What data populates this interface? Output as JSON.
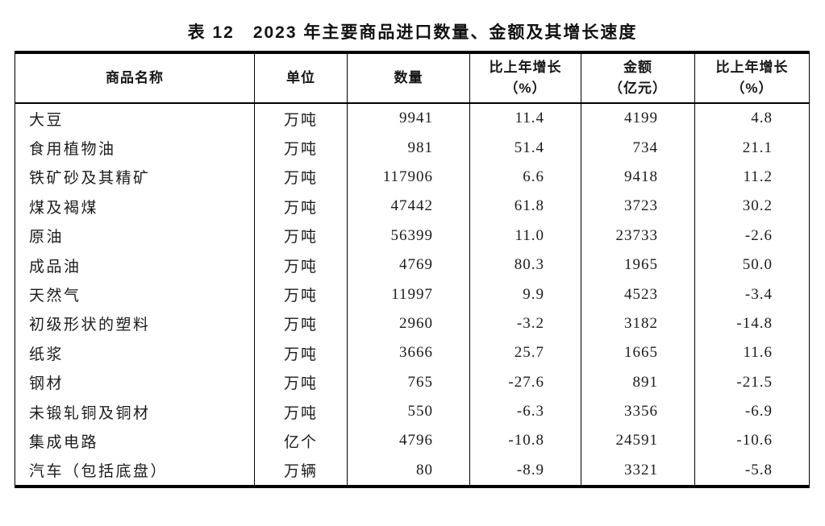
{
  "title": "表 12　2023 年主要商品进口数量、金额及其增长速度",
  "table": {
    "headers": [
      {
        "line1": "商品名称",
        "line2": ""
      },
      {
        "line1": "单位",
        "line2": ""
      },
      {
        "line1": "数量",
        "line2": ""
      },
      {
        "line1": "比上年增长",
        "line2": "（%）"
      },
      {
        "line1": "金额",
        "line2": "（亿元）"
      },
      {
        "line1": "比上年增长",
        "line2": "（%）"
      }
    ],
    "rows": [
      {
        "name": "大豆",
        "unit": "万吨",
        "quantity": "9941",
        "quantity_growth": "11.4",
        "amount": "4199",
        "amount_growth": "4.8"
      },
      {
        "name": "食用植物油",
        "unit": "万吨",
        "quantity": "981",
        "quantity_growth": "51.4",
        "amount": "734",
        "amount_growth": "21.1"
      },
      {
        "name": "铁矿砂及其精矿",
        "unit": "万吨",
        "quantity": "117906",
        "quantity_growth": "6.6",
        "amount": "9418",
        "amount_growth": "11.2"
      },
      {
        "name": "煤及褐煤",
        "unit": "万吨",
        "quantity": "47442",
        "quantity_growth": "61.8",
        "amount": "3723",
        "amount_growth": "30.2"
      },
      {
        "name": "原油",
        "unit": "万吨",
        "quantity": "56399",
        "quantity_growth": "11.0",
        "amount": "23733",
        "amount_growth": "-2.6"
      },
      {
        "name": "成品油",
        "unit": "万吨",
        "quantity": "4769",
        "quantity_growth": "80.3",
        "amount": "1965",
        "amount_growth": "50.0"
      },
      {
        "name": "天然气",
        "unit": "万吨",
        "quantity": "11997",
        "quantity_growth": "9.9",
        "amount": "4523",
        "amount_growth": "-3.4"
      },
      {
        "name": "初级形状的塑料",
        "unit": "万吨",
        "quantity": "2960",
        "quantity_growth": "-3.2",
        "amount": "3182",
        "amount_growth": "-14.8"
      },
      {
        "name": "纸浆",
        "unit": "万吨",
        "quantity": "3666",
        "quantity_growth": "25.7",
        "amount": "1665",
        "amount_growth": "11.6"
      },
      {
        "name": "钢材",
        "unit": "万吨",
        "quantity": "765",
        "quantity_growth": "-27.6",
        "amount": "891",
        "amount_growth": "-21.5"
      },
      {
        "name": "未锻轧铜及铜材",
        "unit": "万吨",
        "quantity": "550",
        "quantity_growth": "-6.3",
        "amount": "3356",
        "amount_growth": "-6.9"
      },
      {
        "name": "集成电路",
        "unit": "亿个",
        "quantity": "4796",
        "quantity_growth": "-10.8",
        "amount": "24591",
        "amount_growth": "-10.6"
      },
      {
        "name": "汽车（包括底盘）",
        "unit": "万辆",
        "quantity": "80",
        "quantity_growth": "-8.9",
        "amount": "3321",
        "amount_growth": "-5.8"
      }
    ]
  }
}
